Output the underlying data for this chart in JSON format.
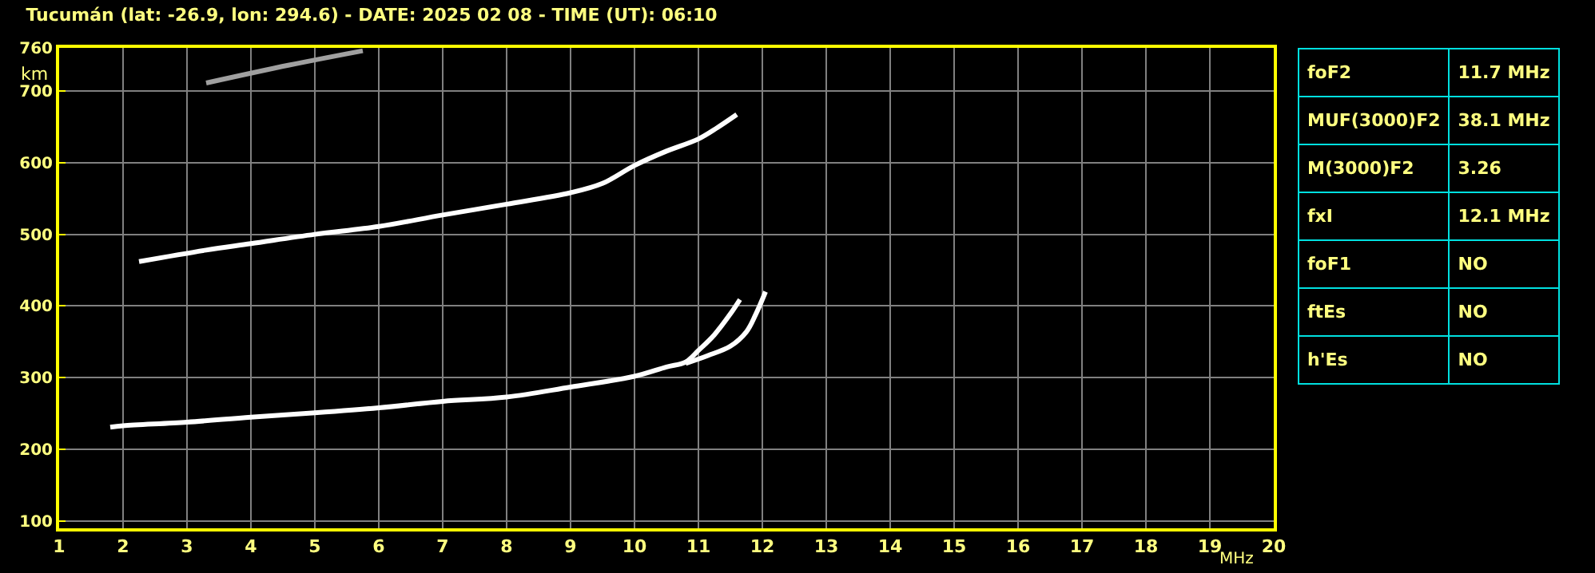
{
  "chart_data": [
    {
      "type": "line",
      "title": "Tucumán (lat: -26.9, lon: 294.6) - DATE: 2025 02 08 - TIME (UT): 06:10",
      "xlabel": "MHz",
      "ylabel": "km",
      "xlim": [
        1,
        20
      ],
      "ylim": [
        90,
        760
      ],
      "xticks": [
        1,
        2,
        3,
        4,
        5,
        6,
        7,
        8,
        9,
        10,
        11,
        12,
        13,
        14,
        15,
        16,
        17,
        18,
        19,
        20
      ],
      "yticks": [
        100,
        200,
        300,
        400,
        500,
        600,
        700,
        760
      ],
      "grid": true,
      "marker": "none",
      "line_style": "solid",
      "series": [
        {
          "color": "#ffffff",
          "x": [
            1.8,
            2,
            3,
            4,
            5,
            6,
            7,
            8,
            9,
            10,
            10.5,
            10.8,
            11,
            11.25,
            11.5,
            11.65
          ],
          "values": [
            231,
            233,
            238,
            245,
            251,
            258,
            267,
            273,
            287,
            302,
            315,
            322,
            338,
            360,
            389,
            409
          ]
        },
        {
          "color": "#ffffff",
          "x": [
            10.8,
            11.15,
            11.5,
            11.75,
            11.9,
            12.05
          ],
          "values": [
            320,
            331,
            344,
            364,
            389,
            420
          ]
        },
        {
          "color": "#ffffff",
          "x": [
            2.25,
            3.3,
            4,
            5,
            6,
            7,
            8,
            9,
            9.5,
            10,
            10.5,
            11,
            11.3,
            11.6
          ],
          "values": [
            462,
            478,
            487,
            500,
            511,
            527,
            542,
            558,
            571,
            596,
            616,
            633,
            649,
            667
          ]
        },
        {
          "color": "#a0a0a0",
          "x": [
            3.3,
            4.6,
            5.75
          ],
          "values": [
            711,
            736,
            756
          ]
        }
      ]
    },
    {
      "type": "other",
      "categories": [
        "foF2",
        "MUF(3000)F2",
        "M(3000)F2",
        "fxI",
        "foF1",
        "ftEs",
        "h'Es"
      ],
      "value_labels": [
        "11.7 MHz",
        "38.1 MHz",
        "3.26",
        "12.1 MHz",
        "NO",
        "NO",
        "NO"
      ]
    }
  ]
}
